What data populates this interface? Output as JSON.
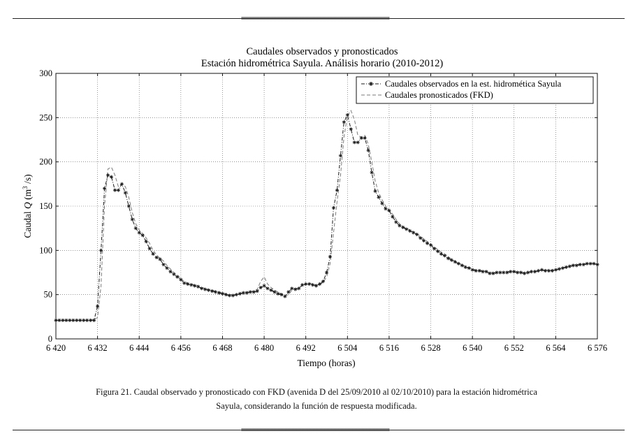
{
  "caption": {
    "line1": "Figura 21. Caudal observado y pronosticado con FKD (avenida D del 25/09/2010 al 02/10/2010) para la estación hidrométrica",
    "line2": "Sayula, considerando la función de respuesta modificada."
  },
  "chart_data": {
    "type": "line",
    "title": "Caudales observados y pronosticados",
    "subtitle": "Estación hidrométrica Sayula. Análisis horario (2010-2012)",
    "xlabel": "Tiempo (horas)",
    "ylabel": "Caudal Q (m³/s)",
    "ylabel_parts": {
      "pre": "Caudal ",
      "q": "Q",
      "mid": " (m",
      "sup": "3",
      "post": " /s)"
    },
    "xlim": [
      6420,
      6576
    ],
    "ylim": [
      0,
      300
    ],
    "x_ticks": [
      6420,
      6432,
      6444,
      6456,
      6468,
      6480,
      6492,
      6504,
      6516,
      6528,
      6540,
      6552,
      6564,
      6576
    ],
    "x_tick_labels": [
      "6 420",
      "6 432",
      "6 444",
      "6 456",
      "6 468",
      "6 480",
      "6 492",
      "6 504",
      "6 516",
      "6 528",
      "6 540",
      "6 552",
      "6 564",
      "6 576"
    ],
    "y_ticks": [
      0,
      50,
      100,
      150,
      200,
      250,
      300
    ],
    "y_tick_labels": [
      "0",
      "50",
      "100",
      "150",
      "200",
      "250",
      "300"
    ],
    "grid": true,
    "legend": {
      "position": "top-right"
    },
    "series": [
      {
        "name": "Caudales observados en la est. hidromética Sayula",
        "style": "dash-dot with star markers",
        "color": "#1a1a1a",
        "x": [
          6420,
          6421,
          6422,
          6423,
          6424,
          6425,
          6426,
          6427,
          6428,
          6429,
          6430,
          6431,
          6432,
          6433,
          6434,
          6435,
          6436,
          6437,
          6438,
          6439,
          6440,
          6441,
          6442,
          6443,
          6444,
          6445,
          6446,
          6447,
          6448,
          6449,
          6450,
          6451,
          6452,
          6453,
          6454,
          6455,
          6456,
          6457,
          6458,
          6459,
          6460,
          6461,
          6462,
          6463,
          6464,
          6465,
          6466,
          6467,
          6468,
          6469,
          6470,
          6471,
          6472,
          6473,
          6474,
          6475,
          6476,
          6477,
          6478,
          6479,
          6480,
          6481,
          6482,
          6483,
          6484,
          6485,
          6486,
          6487,
          6488,
          6489,
          6490,
          6491,
          6492,
          6493,
          6494,
          6495,
          6496,
          6497,
          6498,
          6499,
          6500,
          6501,
          6502,
          6503,
          6504,
          6505,
          6506,
          6507,
          6508,
          6509,
          6510,
          6511,
          6512,
          6513,
          6514,
          6515,
          6516,
          6517,
          6518,
          6519,
          6520,
          6521,
          6522,
          6523,
          6524,
          6525,
          6526,
          6527,
          6528,
          6529,
          6530,
          6531,
          6532,
          6533,
          6534,
          6535,
          6536,
          6537,
          6538,
          6539,
          6540,
          6541,
          6542,
          6543,
          6544,
          6545,
          6546,
          6547,
          6548,
          6549,
          6550,
          6551,
          6552,
          6553,
          6554,
          6555,
          6556,
          6557,
          6558,
          6559,
          6560,
          6561,
          6562,
          6563,
          6564,
          6565,
          6566,
          6567,
          6568,
          6569,
          6570,
          6571,
          6572,
          6573,
          6574,
          6575,
          6576
        ],
        "y": [
          21,
          21,
          21,
          21,
          21,
          21,
          21,
          21,
          21,
          21,
          21,
          21,
          37,
          100,
          170,
          185,
          183,
          168,
          168,
          175,
          165,
          150,
          135,
          125,
          120,
          117,
          110,
          102,
          96,
          92,
          90,
          84,
          80,
          76,
          73,
          70,
          67,
          63,
          62,
          61,
          60,
          59,
          57,
          56,
          55,
          54,
          53,
          52,
          51,
          50,
          49,
          49,
          50,
          51,
          52,
          52,
          53,
          53,
          54,
          58,
          60,
          57,
          55,
          53,
          51,
          50,
          48,
          53,
          57,
          56,
          57,
          61,
          62,
          62,
          61,
          60,
          62,
          65,
          75,
          93,
          148,
          168,
          207,
          245,
          253,
          237,
          222,
          222,
          227,
          227,
          213,
          188,
          167,
          160,
          153,
          147,
          145,
          138,
          132,
          128,
          126,
          124,
          122,
          120,
          118,
          114,
          111,
          108,
          106,
          102,
          99,
          96,
          94,
          91,
          89,
          87,
          85,
          83,
          81,
          80,
          78,
          77,
          77,
          76,
          76,
          74,
          74,
          75,
          75,
          75,
          75,
          76,
          76,
          75,
          75,
          74,
          75,
          76,
          76,
          77,
          78,
          77,
          77,
          77,
          78,
          79,
          80,
          81,
          82,
          83,
          83,
          84,
          84,
          85,
          85,
          85,
          84
        ]
      },
      {
        "name": "Caudales pronosticados (FKD)",
        "style": "dashed",
        "color": "#7a7a7a",
        "x": [
          6420,
          6421,
          6422,
          6423,
          6424,
          6425,
          6426,
          6427,
          6428,
          6429,
          6430,
          6431,
          6432,
          6433,
          6434,
          6435,
          6436,
          6437,
          6438,
          6439,
          6440,
          6441,
          6442,
          6443,
          6444,
          6445,
          6446,
          6447,
          6448,
          6449,
          6450,
          6451,
          6452,
          6453,
          6454,
          6455,
          6456,
          6457,
          6458,
          6459,
          6460,
          6461,
          6462,
          6463,
          6464,
          6465,
          6466,
          6467,
          6468,
          6469,
          6470,
          6471,
          6472,
          6473,
          6474,
          6475,
          6476,
          6477,
          6478,
          6479,
          6480,
          6481,
          6482,
          6483,
          6484,
          6485,
          6486,
          6487,
          6488,
          6489,
          6490,
          6491,
          6492,
          6493,
          6494,
          6495,
          6496,
          6497,
          6498,
          6499,
          6500,
          6501,
          6502,
          6503,
          6504,
          6505,
          6506,
          6507,
          6508,
          6509,
          6510,
          6511,
          6512,
          6513,
          6514,
          6515,
          6516,
          6517,
          6518,
          6519,
          6520,
          6521,
          6522,
          6523,
          6524,
          6525,
          6526,
          6527,
          6528,
          6529,
          6530,
          6531,
          6532,
          6533,
          6534,
          6535,
          6536,
          6537,
          6538,
          6539,
          6540,
          6541,
          6542,
          6543,
          6544,
          6545,
          6546,
          6547,
          6548,
          6549,
          6550,
          6551,
          6552,
          6553,
          6554,
          6555,
          6556,
          6557,
          6558,
          6559,
          6560,
          6561,
          6562,
          6563,
          6564,
          6565,
          6566,
          6567,
          6568,
          6569,
          6570,
          6571,
          6572,
          6573,
          6574,
          6575,
          6576
        ],
        "y": [
          21,
          21,
          21,
          21,
          21,
          21,
          21,
          21,
          21,
          21,
          21,
          22,
          24,
          60,
          150,
          192,
          194,
          185,
          172,
          175,
          172,
          160,
          143,
          130,
          123,
          119,
          114,
          108,
          100,
          95,
          91,
          88,
          83,
          79,
          75,
          72,
          68,
          65,
          63,
          62,
          61,
          60,
          58,
          57,
          56,
          55,
          54,
          53,
          52,
          51,
          50,
          50,
          50,
          51,
          52,
          53,
          53,
          54,
          56,
          65,
          70,
          62,
          58,
          55,
          53,
          51,
          49,
          50,
          55,
          57,
          58,
          60,
          62,
          63,
          62,
          61,
          61,
          64,
          70,
          85,
          120,
          155,
          185,
          228,
          252,
          258,
          248,
          230,
          228,
          230,
          220,
          200,
          178,
          165,
          157,
          150,
          146,
          141,
          135,
          130,
          127,
          125,
          123,
          121,
          119,
          116,
          113,
          110,
          107,
          104,
          101,
          98,
          96,
          93,
          90,
          88,
          86,
          84,
          82,
          81,
          79,
          78,
          78,
          77,
          76,
          75,
          75,
          75,
          75,
          75,
          76,
          76,
          76,
          76,
          75,
          75,
          75,
          76,
          76,
          77,
          78,
          78,
          78,
          78,
          78,
          79,
          80,
          81,
          82,
          83,
          84,
          84,
          84,
          85,
          85,
          85,
          84
        ]
      }
    ]
  }
}
